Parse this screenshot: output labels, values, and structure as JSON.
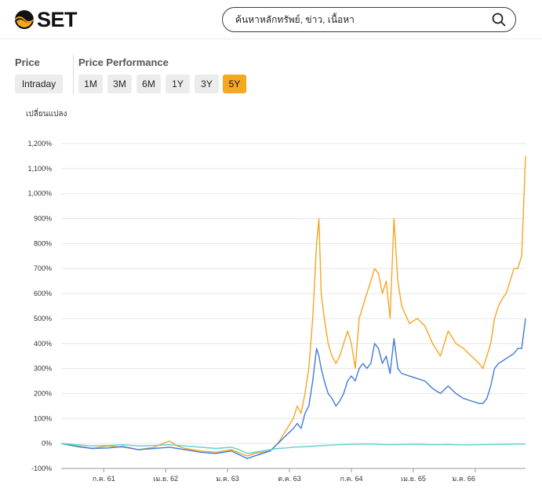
{
  "header": {
    "logo_text": "SET",
    "search": {
      "placeholder": "ค้นหาหลักทรัพย์, ข่าว, เนื้อหา"
    },
    "icons": {
      "logo": "set-logo-icon",
      "search": "search-icon"
    }
  },
  "price_section": {
    "label": "Price",
    "button": "Intraday"
  },
  "performance_section": {
    "label": "Price Performance",
    "ranges": [
      "1M",
      "3M",
      "6M",
      "1Y",
      "3Y",
      "5Y"
    ],
    "active": "5Y"
  },
  "colors": {
    "accent": "#f6a821",
    "series_orange": "#f5a623",
    "series_blue": "#3f7bd9",
    "series_teal": "#5ed0d2"
  },
  "chart_data": {
    "type": "line",
    "ylabel": "เปลี่ยนแปลง",
    "ylim": [
      -100,
      1200
    ],
    "yticks": [
      -100,
      0,
      100,
      200,
      300,
      400,
      500,
      600,
      700,
      800,
      900,
      1000,
      1100,
      1200
    ],
    "ytick_labels": [
      "-100%",
      "0%",
      "100%",
      "200%",
      "300%",
      "400%",
      "500%",
      "600%",
      "700%",
      "800%",
      "900%",
      "1,000%",
      "1,100%",
      "1,200%"
    ],
    "xlim": [
      0,
      60
    ],
    "xticks": [
      5.5,
      13.5,
      21.5,
      29.5,
      37.5,
      45.5,
      53.5
    ],
    "xtick_labels": [
      "ก.ค. 61",
      "เม.ย. 62",
      "ม.ค. 63",
      "ต.ค. 63",
      "ก.ค. 64",
      "เม.ย. 65",
      "ม.ค. 66"
    ],
    "grid": true,
    "legend": "none",
    "series": [
      {
        "color": "#f5a623",
        "x": [
          0,
          2,
          4,
          6,
          8,
          10,
          12,
          14,
          15,
          16,
          18,
          20,
          22,
          24,
          25,
          26,
          27,
          28,
          29,
          30,
          30.5,
          31,
          31.5,
          32,
          32.5,
          33,
          33.3,
          33.6,
          34,
          34.5,
          35,
          35.5,
          36,
          36.5,
          37,
          37.5,
          38,
          38.5,
          39,
          39.5,
          40,
          40.5,
          41,
          41.5,
          42,
          42.5,
          43,
          43.5,
          44,
          45,
          46,
          47,
          48,
          49,
          50,
          51,
          52,
          53,
          54,
          54.5,
          55,
          55.5,
          56,
          56.5,
          57,
          57.5,
          58,
          58.5,
          59,
          59.5,
          60
        ],
        "y": [
          0,
          -10,
          -20,
          -10,
          -15,
          -25,
          -15,
          10,
          -10,
          -20,
          -30,
          -35,
          -25,
          -50,
          -40,
          -35,
          -30,
          0,
          50,
          100,
          150,
          120,
          200,
          300,
          500,
          800,
          900,
          600,
          500,
          400,
          350,
          320,
          350,
          400,
          450,
          400,
          300,
          500,
          550,
          600,
          650,
          700,
          680,
          600,
          650,
          500,
          900,
          650,
          550,
          480,
          500,
          470,
          400,
          350,
          450,
          400,
          380,
          350,
          320,
          300,
          350,
          400,
          500,
          550,
          580,
          600,
          650,
          700,
          700,
          750,
          1150
        ]
      },
      {
        "color": "#3f7bd9",
        "x": [
          0,
          2,
          4,
          6,
          8,
          10,
          12,
          14,
          15,
          16,
          18,
          20,
          22,
          24,
          25,
          26,
          27,
          28,
          29,
          30,
          30.5,
          31,
          31.5,
          32,
          32.5,
          33,
          33.3,
          33.6,
          34,
          34.5,
          35,
          35.5,
          36,
          36.5,
          37,
          37.5,
          38,
          38.5,
          39,
          39.5,
          40,
          40.5,
          41,
          41.5,
          42,
          42.5,
          43,
          43.5,
          44,
          45,
          46,
          47,
          48,
          49,
          50,
          51,
          52,
          53,
          54,
          54.5,
          55,
          55.5,
          56,
          56.5,
          57,
          57.5,
          58,
          58.5,
          59,
          59.5,
          60
        ],
        "y": [
          0,
          -12,
          -20,
          -18,
          -12,
          -25,
          -20,
          -15,
          -20,
          -25,
          -35,
          -40,
          -30,
          -60,
          -50,
          -40,
          -30,
          0,
          30,
          60,
          80,
          60,
          120,
          150,
          250,
          380,
          350,
          300,
          250,
          200,
          180,
          150,
          170,
          200,
          250,
          270,
          250,
          300,
          320,
          300,
          320,
          400,
          380,
          320,
          350,
          280,
          420,
          300,
          280,
          270,
          260,
          250,
          220,
          200,
          230,
          200,
          180,
          170,
          160,
          160,
          180,
          230,
          300,
          320,
          330,
          340,
          350,
          360,
          380,
          380,
          500
        ]
      },
      {
        "color": "#5ed0d2",
        "x": [
          0,
          2,
          4,
          6,
          8,
          10,
          12,
          14,
          16,
          18,
          20,
          22,
          23,
          24,
          25,
          26,
          27,
          28,
          29,
          30,
          32,
          34,
          36,
          38,
          40,
          42,
          44,
          46,
          48,
          50,
          52,
          54,
          56,
          58,
          60
        ],
        "y": [
          0,
          -5,
          -10,
          -8,
          -5,
          -10,
          -8,
          -5,
          -10,
          -15,
          -20,
          -15,
          -25,
          -40,
          -35,
          -30,
          -25,
          -20,
          -18,
          -15,
          -12,
          -8,
          -5,
          -3,
          -2,
          -5,
          -4,
          -3,
          -5,
          -4,
          -6,
          -5,
          -4,
          -3,
          -2
        ]
      }
    ]
  }
}
